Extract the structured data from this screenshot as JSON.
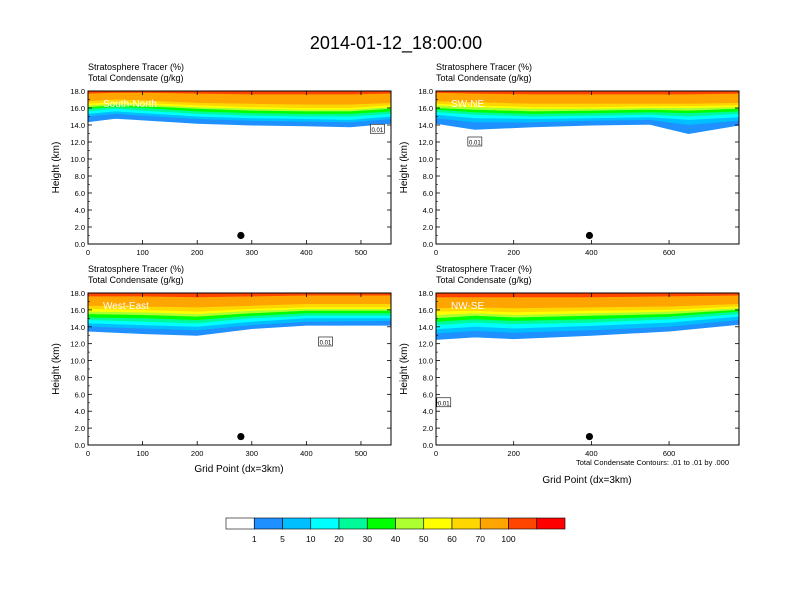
{
  "figure": {
    "title": "2014-01-12_18:00:00",
    "field_label_1": "Stratosphere Tracer   (%)",
    "field_label_2": "Total Condensate   (g/kg)",
    "contour_note": "Total Condensate Contours: .01 to .01 by .000",
    "ylabel": "Height (km)",
    "xlabel": "Grid Point (dx=3km)"
  },
  "chart_data": [
    {
      "type": "heatmap",
      "panel": "South-North",
      "title": "South-North",
      "xlim": [
        0,
        555
      ],
      "ylim": [
        0,
        18
      ],
      "x_ticks": [
        0,
        100,
        200,
        300,
        400,
        500
      ],
      "y_ticks": [
        "0.0",
        "2.0",
        "4.0",
        "6.0",
        "8.0",
        "10.0",
        "12.0",
        "14.0",
        "16.0",
        "18.0"
      ],
      "marker": {
        "x": 280,
        "y": 1.0
      },
      "contour_labels": [
        {
          "x": 530,
          "y": 13.5,
          "text": "0.01"
        }
      ],
      "tracer_profile": [
        {
          "x": 0,
          "c1": 14.4,
          "c5": 15.0,
          "c10": 15.3,
          "c20": 15.6,
          "c30": 15.9,
          "c40": 16.1,
          "c50": 16.3,
          "c60": 16.5,
          "c70": 16.8,
          "c100": 17.7
        },
        {
          "x": 50,
          "c1": 14.8,
          "c5": 15.3,
          "c10": 15.6,
          "c20": 15.9,
          "c30": 16.1,
          "c40": 16.3,
          "c50": 16.5,
          "c60": 16.7,
          "c70": 17.0,
          "c100": 17.8
        },
        {
          "x": 100,
          "c1": 14.6,
          "c5": 15.1,
          "c10": 15.4,
          "c20": 15.7,
          "c30": 16.0,
          "c40": 16.2,
          "c50": 16.4,
          "c60": 16.6,
          "c70": 16.9,
          "c100": 17.8
        },
        {
          "x": 200,
          "c1": 14.2,
          "c5": 14.7,
          "c10": 15.0,
          "c20": 15.3,
          "c30": 15.6,
          "c40": 15.9,
          "c50": 16.1,
          "c60": 16.3,
          "c70": 16.6,
          "c100": 17.7
        },
        {
          "x": 300,
          "c1": 14.0,
          "c5": 14.5,
          "c10": 14.8,
          "c20": 15.1,
          "c30": 15.4,
          "c40": 15.7,
          "c50": 15.9,
          "c60": 16.1,
          "c70": 16.5,
          "c100": 17.6
        },
        {
          "x": 400,
          "c1": 13.9,
          "c5": 14.4,
          "c10": 14.7,
          "c20": 15.0,
          "c30": 15.3,
          "c40": 15.6,
          "c50": 15.8,
          "c60": 16.0,
          "c70": 16.4,
          "c100": 17.6
        },
        {
          "x": 480,
          "c1": 13.8,
          "c5": 14.3,
          "c10": 14.6,
          "c20": 15.0,
          "c30": 15.3,
          "c40": 15.6,
          "c50": 15.8,
          "c60": 16.0,
          "c70": 16.4,
          "c100": 17.6
        },
        {
          "x": 555,
          "c1": 14.2,
          "c5": 14.7,
          "c10": 15.0,
          "c20": 15.3,
          "c30": 15.6,
          "c40": 15.9,
          "c50": 16.1,
          "c60": 16.3,
          "c70": 16.6,
          "c100": 17.7
        }
      ]
    },
    {
      "type": "heatmap",
      "panel": "SW-NE",
      "title": "SW-NE",
      "xlim": [
        0,
        780
      ],
      "ylim": [
        0,
        18
      ],
      "x_ticks": [
        0,
        200,
        400,
        600
      ],
      "y_ticks": [
        "0.0",
        "2.0",
        "4.0",
        "6.0",
        "8.0",
        "10.0",
        "12.0",
        "14.0",
        "16.0",
        "18.0"
      ],
      "marker": {
        "x": 395,
        "y": 1.0
      },
      "contour_labels": [
        {
          "x": 100,
          "y": 12.0,
          "text": "0.01"
        }
      ],
      "tracer_profile": [
        {
          "x": 0,
          "c1": 14.2,
          "c5": 14.8,
          "c10": 15.2,
          "c20": 15.5,
          "c30": 15.8,
          "c40": 16.0,
          "c50": 16.3,
          "c60": 16.5,
          "c70": 16.8,
          "c100": 17.8
        },
        {
          "x": 100,
          "c1": 13.5,
          "c5": 14.3,
          "c10": 14.8,
          "c20": 15.2,
          "c30": 15.5,
          "c40": 15.8,
          "c50": 16.1,
          "c60": 16.3,
          "c70": 16.7,
          "c100": 17.7
        },
        {
          "x": 250,
          "c1": 13.8,
          "c5": 14.3,
          "c10": 14.7,
          "c20": 15.0,
          "c30": 15.3,
          "c40": 15.6,
          "c50": 15.9,
          "c60": 16.1,
          "c70": 16.5,
          "c100": 17.6
        },
        {
          "x": 400,
          "c1": 14.0,
          "c5": 14.5,
          "c10": 14.8,
          "c20": 15.1,
          "c30": 15.4,
          "c40": 15.7,
          "c50": 15.9,
          "c60": 16.1,
          "c70": 16.5,
          "c100": 17.6
        },
        {
          "x": 550,
          "c1": 14.1,
          "c5": 14.6,
          "c10": 14.9,
          "c20": 15.2,
          "c30": 15.5,
          "c40": 15.8,
          "c50": 16.0,
          "c60": 16.2,
          "c70": 16.5,
          "c100": 17.6
        },
        {
          "x": 650,
          "c1": 13.0,
          "c5": 14.0,
          "c10": 14.6,
          "c20": 15.0,
          "c30": 15.4,
          "c40": 15.7,
          "c50": 16.0,
          "c60": 16.2,
          "c70": 16.5,
          "c100": 17.6
        },
        {
          "x": 780,
          "c1": 14.0,
          "c5": 14.5,
          "c10": 14.9,
          "c20": 15.3,
          "c30": 15.6,
          "c40": 15.9,
          "c50": 16.1,
          "c60": 16.3,
          "c70": 16.6,
          "c100": 17.7
        }
      ]
    },
    {
      "type": "heatmap",
      "panel": "West-East",
      "title": "West-East",
      "xlim": [
        0,
        555
      ],
      "ylim": [
        0,
        18
      ],
      "x_ticks": [
        0,
        100,
        200,
        300,
        400,
        500
      ],
      "y_ticks": [
        "0.0",
        "2.0",
        "4.0",
        "6.0",
        "8.0",
        "10.0",
        "12.0",
        "14.0",
        "16.0",
        "18.0"
      ],
      "marker": {
        "x": 280,
        "y": 1.0
      },
      "contour_labels": [
        {
          "x": 435,
          "y": 12.2,
          "text": "0.01"
        }
      ],
      "tracer_profile": [
        {
          "x": 0,
          "c1": 13.5,
          "c5": 14.0,
          "c10": 14.4,
          "c20": 14.8,
          "c30": 15.1,
          "c40": 15.5,
          "c50": 15.8,
          "c60": 16.1,
          "c70": 16.5,
          "c100": 17.6
        },
        {
          "x": 100,
          "c1": 13.2,
          "c5": 13.8,
          "c10": 14.2,
          "c20": 14.6,
          "c30": 15.0,
          "c40": 15.4,
          "c50": 15.7,
          "c60": 16.0,
          "c70": 16.4,
          "c100": 17.6
        },
        {
          "x": 200,
          "c1": 13.0,
          "c5": 13.6,
          "c10": 14.0,
          "c20": 14.4,
          "c30": 14.8,
          "c40": 15.2,
          "c50": 15.5,
          "c60": 15.8,
          "c70": 16.3,
          "c100": 17.5
        },
        {
          "x": 300,
          "c1": 13.8,
          "c5": 14.2,
          "c10": 14.6,
          "c20": 15.0,
          "c30": 15.3,
          "c40": 15.6,
          "c50": 15.9,
          "c60": 16.1,
          "c70": 16.5,
          "c100": 17.6
        },
        {
          "x": 400,
          "c1": 14.2,
          "c5": 14.6,
          "c10": 15.0,
          "c20": 15.3,
          "c30": 15.6,
          "c40": 15.9,
          "c50": 16.1,
          "c60": 16.3,
          "c70": 16.7,
          "c100": 17.7
        },
        {
          "x": 555,
          "c1": 14.2,
          "c5": 14.7,
          "c10": 15.0,
          "c20": 15.3,
          "c30": 15.6,
          "c40": 15.9,
          "c50": 16.1,
          "c60": 16.3,
          "c70": 16.7,
          "c100": 17.7
        }
      ]
    },
    {
      "type": "heatmap",
      "panel": "NW-SE",
      "title": "NW-SE",
      "xlim": [
        0,
        780
      ],
      "ylim": [
        0,
        18
      ],
      "x_ticks": [
        0,
        200,
        400,
        600
      ],
      "y_ticks": [
        "0.0",
        "2.0",
        "4.0",
        "6.0",
        "8.0",
        "10.0",
        "12.0",
        "14.0",
        "16.0",
        "18.0"
      ],
      "marker": {
        "x": 395,
        "y": 1.0
      },
      "contour_labels": [
        {
          "x": 20,
          "y": 5.0,
          "text": "0.01"
        }
      ],
      "tracer_profile": [
        {
          "x": 0,
          "c1": 12.5,
          "c5": 13.2,
          "c10": 13.7,
          "c20": 14.2,
          "c30": 14.6,
          "c40": 15.0,
          "c50": 15.4,
          "c60": 15.8,
          "c70": 16.2,
          "c100": 17.5
        },
        {
          "x": 100,
          "c1": 12.8,
          "c5": 13.5,
          "c10": 14.0,
          "c20": 14.5,
          "c30": 14.9,
          "c40": 15.3,
          "c50": 15.6,
          "c60": 15.9,
          "c70": 16.3,
          "c100": 17.5
        },
        {
          "x": 200,
          "c1": 12.6,
          "c5": 13.3,
          "c10": 13.8,
          "c20": 14.3,
          "c30": 14.7,
          "c40": 15.1,
          "c50": 15.4,
          "c60": 15.7,
          "c70": 16.2,
          "c100": 17.5
        },
        {
          "x": 400,
          "c1": 13.0,
          "c5": 13.6,
          "c10": 14.1,
          "c20": 14.5,
          "c30": 14.9,
          "c40": 15.3,
          "c50": 15.6,
          "c60": 15.9,
          "c70": 16.3,
          "c100": 17.5
        },
        {
          "x": 600,
          "c1": 13.5,
          "c5": 14.0,
          "c10": 14.5,
          "c20": 14.9,
          "c30": 15.2,
          "c40": 15.5,
          "c50": 15.8,
          "c60": 16.0,
          "c70": 16.4,
          "c100": 17.6
        },
        {
          "x": 780,
          "c1": 14.3,
          "c5": 14.8,
          "c10": 15.2,
          "c20": 15.5,
          "c30": 15.8,
          "c40": 16.0,
          "c50": 16.2,
          "c60": 16.4,
          "c70": 16.7,
          "c100": 17.7
        }
      ]
    }
  ],
  "colorbar": {
    "levels": [
      "1",
      "5",
      "10",
      "20",
      "30",
      "40",
      "50",
      "60",
      "70",
      "100"
    ],
    "colors": [
      "#ffffff",
      "#1e90ff",
      "#00bfff",
      "#00ffff",
      "#00fa9a",
      "#00ff00",
      "#adff2f",
      "#ffff00",
      "#ffd700",
      "#ffa500",
      "#ff4500",
      "#ff0000"
    ]
  }
}
